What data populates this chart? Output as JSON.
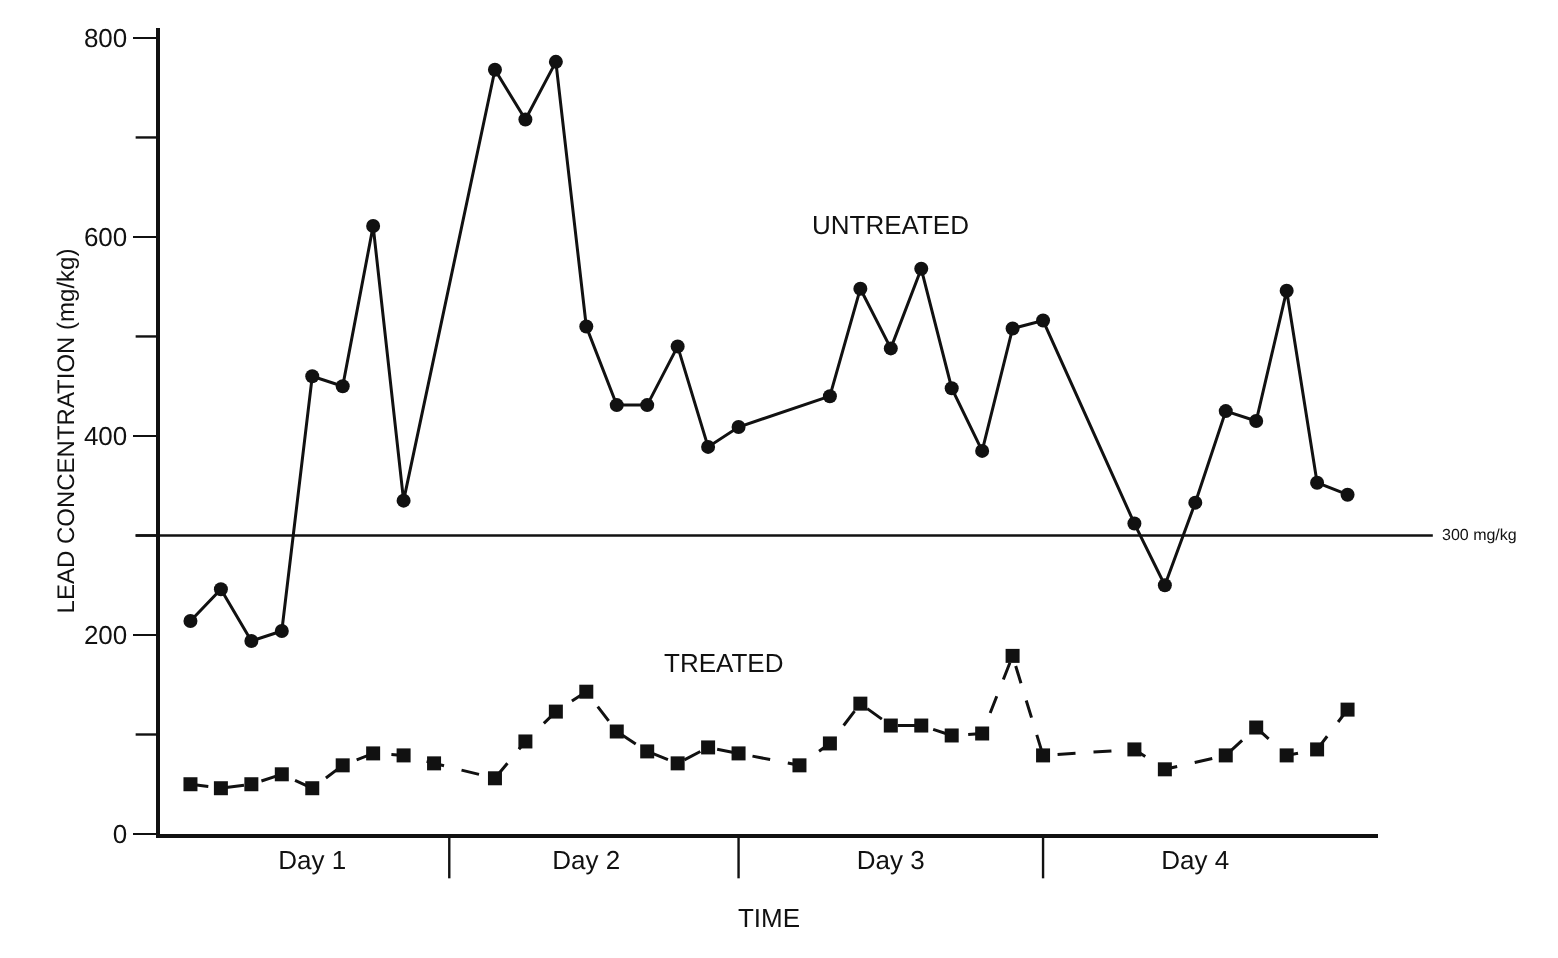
{
  "chart_data": {
    "type": "line",
    "xlabel": "TIME",
    "ylabel": "LEAD CONCENTRATION (mg/kg)",
    "categories": [
      null,
      null,
      null,
      null,
      "Day 1",
      null,
      null,
      null,
      null,
      null,
      null,
      null,
      null,
      "Day 2",
      null,
      null,
      null,
      null,
      null,
      null,
      null,
      null,
      null,
      "Day 3",
      null,
      null,
      null,
      null,
      null,
      null,
      null,
      null,
      null,
      "Day 4",
      null,
      null,
      null,
      null,
      null
    ],
    "ylim": [
      0,
      810
    ],
    "yticks": [
      0,
      {
        "value": 100,
        "label": null
      },
      200,
      {
        "value": 300,
        "label": null
      },
      400,
      {
        "value": 500,
        "label": null
      },
      600,
      {
        "value": 700,
        "label": null
      },
      800
    ],
    "series": [
      {
        "name": "UNTREATED",
        "color": "#111111",
        "marker": "circle",
        "line_style": "solid",
        "values": [
          214,
          246,
          194,
          204,
          460,
          450,
          611,
          335,
          null,
          null,
          768,
          718,
          776,
          510,
          431,
          431,
          490,
          389,
          409,
          null,
          null,
          440,
          548,
          488,
          568,
          448,
          385,
          508,
          516,
          null,
          null,
          312,
          250,
          333,
          425,
          415,
          546,
          353,
          341
        ]
      },
      {
        "name": "TREATED",
        "color": "#111111",
        "marker": "square",
        "line_style": "dashed",
        "values": [
          50,
          46,
          50,
          60,
          46,
          69,
          81,
          79,
          71,
          null,
          56,
          93,
          123,
          143,
          103,
          83,
          71,
          87,
          81,
          null,
          69,
          91,
          131,
          109,
          109,
          99,
          101,
          179,
          79,
          null,
          null,
          85,
          65,
          null,
          79,
          107,
          79,
          85,
          125
        ]
      }
    ],
    "ref_lines": [
      {
        "axis": "y",
        "value": 300,
        "label": "300 mg/kg",
        "color": "#111111",
        "line_style": "solid"
      }
    ],
    "grid": false,
    "legend": false
  }
}
